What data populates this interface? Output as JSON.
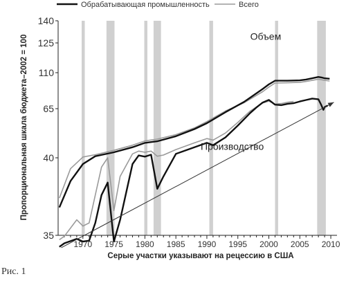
{
  "caption": "Рис. 1",
  "chart_data": {
    "type": "line",
    "title": "",
    "xlabel": "Серые участки указывают на рецессию в США",
    "ylabel": "Пропорциональная шкала бюджета–2002 = 100",
    "xlim": [
      1966,
      2011
    ],
    "y_ticks": [
      35,
      40,
      65,
      110,
      125,
      140
    ],
    "x_ticks": [
      1970,
      1975,
      1980,
      1985,
      1990,
      1995,
      2000,
      2005,
      2010
    ],
    "legend_position": "top",
    "grid": false,
    "recessions": [
      [
        1969.8,
        1970.3
      ],
      [
        1973.8,
        1975.1
      ],
      [
        1979.9,
        1980.4
      ],
      [
        1981.4,
        1982.6
      ],
      [
        1990.4,
        1991.0
      ],
      [
        2001.0,
        2001.5
      ],
      [
        2007.8,
        2009.2
      ]
    ],
    "annotations": [
      {
        "text": "Объем",
        "x": 1997.0,
        "y": 127
      },
      {
        "text": "Производство",
        "x": 1989.0,
        "y": 44
      }
    ],
    "series": [
      {
        "name": "Обрабатывающая промышленность",
        "color": "#111111",
        "group": "volume",
        "values": [
          [
            1966.2,
            36.8
          ],
          [
            1968,
            38.5
          ],
          [
            1970,
            39.6
          ],
          [
            1972,
            40.8
          ],
          [
            1975,
            42.8
          ],
          [
            1978,
            45.4
          ],
          [
            1980,
            47.6
          ],
          [
            1982,
            48.4
          ],
          [
            1985,
            51.0
          ],
          [
            1988,
            54.6
          ],
          [
            1990,
            57.6
          ],
          [
            1993,
            63.2
          ],
          [
            1996,
            73.5
          ],
          [
            1999,
            89.6
          ],
          [
            2000,
            95.4
          ],
          [
            2001,
            100.0
          ],
          [
            2003,
            100.0
          ],
          [
            2005,
            100.4
          ],
          [
            2006,
            101.4
          ],
          [
            2007,
            103.0
          ],
          [
            2008,
            104.6
          ],
          [
            2008.5,
            104.0
          ],
          [
            2009,
            103.0
          ],
          [
            2009.8,
            102.4
          ]
        ]
      },
      {
        "name": "Всего",
        "color": "#9a9a9a",
        "group": "volume",
        "values": [
          [
            1966.2,
            37.4
          ],
          [
            1968,
            39.3
          ],
          [
            1970,
            40.4
          ],
          [
            1972,
            41.6
          ],
          [
            1975,
            43.8
          ],
          [
            1978,
            46.4
          ],
          [
            1980,
            48.6
          ],
          [
            1982,
            49.5
          ],
          [
            1985,
            51.8
          ],
          [
            1988,
            55.2
          ],
          [
            1990,
            58.4
          ],
          [
            1993,
            63.8
          ],
          [
            1996,
            72.4
          ],
          [
            1999,
            86.2
          ],
          [
            2000,
            92.0
          ],
          [
            2001,
            97.0
          ],
          [
            2003,
            97.4
          ],
          [
            2005,
            98.0
          ],
          [
            2006,
            99.0
          ],
          [
            2007,
            100.4
          ],
          [
            2008,
            101.8
          ],
          [
            2008.5,
            101.2
          ],
          [
            2009,
            100.4
          ],
          [
            2009.8,
            99.6
          ]
        ]
      },
      {
        "name": "Обрабатывающая промышленность",
        "color": "#111111",
        "group": "production",
        "values": [
          [
            1966.2,
            32.4
          ],
          [
            1967,
            33.2
          ],
          [
            1969,
            34.2
          ],
          [
            1970,
            33.6
          ],
          [
            1971,
            33.8
          ],
          [
            1972,
            35.8
          ],
          [
            1973,
            37.6
          ],
          [
            1974,
            38.4
          ],
          [
            1975,
            33.6
          ],
          [
            1976,
            36.0
          ],
          [
            1978,
            39.6
          ],
          [
            1979,
            41.2
          ],
          [
            1980,
            40.6
          ],
          [
            1981,
            41.6
          ],
          [
            1982,
            38.0
          ],
          [
            1983,
            38.8
          ],
          [
            1985,
            42.0
          ],
          [
            1988,
            45.4
          ],
          [
            1990,
            47.6
          ],
          [
            1991,
            46.4
          ],
          [
            1993,
            50.4
          ],
          [
            1995,
            56.4
          ],
          [
            1997,
            62.8
          ],
          [
            1998,
            66.6
          ],
          [
            1999,
            72.6
          ],
          [
            2000,
            76.0
          ],
          [
            2001,
            70.0
          ],
          [
            2002,
            69.4
          ],
          [
            2003,
            71.0
          ],
          [
            2004,
            71.8
          ],
          [
            2005,
            74.0
          ],
          [
            2006,
            75.8
          ],
          [
            2007,
            77.6
          ],
          [
            2008,
            76.8
          ],
          [
            2008.4,
            70.6
          ],
          [
            2008.8,
            64.4
          ],
          [
            2009,
            67.0
          ],
          [
            2009.5,
            69.0
          ]
        ]
      },
      {
        "name": "Всего",
        "color": "#9a9a9a",
        "group": "production",
        "values": [
          [
            1966.2,
            34.0
          ],
          [
            1967,
            34.8
          ],
          [
            1969,
            36.0
          ],
          [
            1970,
            35.6
          ],
          [
            1971,
            35.8
          ],
          [
            1972,
            37.6
          ],
          [
            1973,
            39.4
          ],
          [
            1974,
            40.0
          ],
          [
            1975,
            36.6
          ],
          [
            1976,
            38.8
          ],
          [
            1978,
            42.0
          ],
          [
            1979,
            43.4
          ],
          [
            1980,
            42.8
          ],
          [
            1981,
            43.4
          ],
          [
            1982,
            40.8
          ],
          [
            1983,
            41.4
          ],
          [
            1985,
            44.2
          ],
          [
            1988,
            47.6
          ],
          [
            1990,
            49.8
          ],
          [
            1991,
            49.0
          ],
          [
            1993,
            52.6
          ],
          [
            1995,
            58.0
          ],
          [
            1997,
            63.8
          ],
          [
            1998,
            67.0
          ],
          [
            1999,
            72.0
          ],
          [
            2000,
            74.4
          ],
          [
            2001,
            70.8
          ],
          [
            2002,
            71.4
          ],
          [
            2003,
            73.0
          ],
          [
            2004,
            74.0
          ]
        ]
      }
    ],
    "trend_arrow": {
      "from": [
        1966.5,
        32.2
      ],
      "to": [
        2010.5,
        73.0
      ]
    }
  }
}
